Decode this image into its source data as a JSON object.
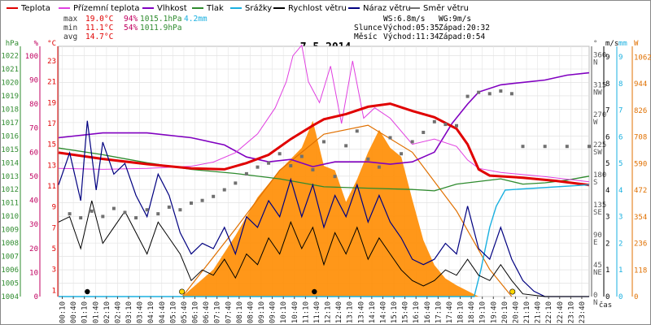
{
  "chart_data": {
    "type": "line",
    "title": "7.5.2014",
    "xlabel": "čas",
    "x_ticks": [
      "00:10",
      "00:40",
      "01:10",
      "01:40",
      "02:10",
      "02:40",
      "03:10",
      "03:40",
      "04:10",
      "04:40",
      "05:10",
      "05:40",
      "06:10",
      "06:40",
      "07:10",
      "07:40",
      "08:10",
      "08:40",
      "09:10",
      "09:40",
      "10:10",
      "10:40",
      "11:10",
      "11:40",
      "12:10",
      "12:40",
      "13:10",
      "13:40",
      "14:10",
      "14:40",
      "15:10",
      "15:40",
      "16:10",
      "16:40",
      "17:10",
      "17:40",
      "18:10",
      "18:40",
      "19:10",
      "19:40",
      "20:10",
      "20:40",
      "21:10",
      "21:40",
      "22:10",
      "22:40",
      "23:10",
      "23:40"
    ],
    "legend": [
      {
        "name": "Teplota",
        "color": "#e00000"
      },
      {
        "name": "Přízemní teplota",
        "color": "#e040e0"
      },
      {
        "name": "Vlhkost",
        "color": "#8000c0"
      },
      {
        "name": "Tlak",
        "color": "#2e8b2e"
      },
      {
        "name": "Srážky",
        "color": "#1ab0e0"
      },
      {
        "name": "Rychlost větru",
        "color": "#000000"
      },
      {
        "name": "Náraz větru",
        "color": "#000080"
      },
      {
        "name": "Směr větru",
        "color": "#707070"
      }
    ],
    "axes": {
      "hpa": {
        "label": "hPa",
        "color": "#2e8b2e",
        "ticks": [
          "1022",
          "1021",
          "1020",
          "1019",
          "1018",
          "1017",
          "1016",
          "1015",
          "1014",
          "1013",
          "1012",
          "1011",
          "1010",
          "1009",
          "1008",
          "1007",
          "1006",
          "1005",
          "1004"
        ]
      },
      "pct": {
        "label": "%",
        "color": "#c00060",
        "ticks": [
          "100",
          "90",
          "80",
          "70",
          "60",
          "50",
          "40",
          "30",
          "20",
          "10",
          "0"
        ]
      },
      "degc": {
        "label": "°C",
        "color": "#e00000",
        "ticks": [
          "23",
          "21",
          "19",
          "17",
          "15",
          "13",
          "11",
          "9",
          "7",
          "5",
          "3",
          "1"
        ]
      },
      "deg": {
        "label": "°",
        "color": "#555555",
        "ticks": [
          "360",
          "315",
          "270",
          "225",
          "180",
          "135",
          "90",
          "45",
          "0"
        ],
        "dirs": [
          "N",
          "NW",
          "W",
          "SW",
          "S",
          "SE",
          "E",
          "NE",
          "N"
        ]
      },
      "ms": {
        "label": "m/s",
        "color": "#000000",
        "ticks": [
          "9",
          "8",
          "7",
          "6",
          "5",
          "4",
          "3",
          "2",
          "1",
          "0"
        ]
      },
      "mm": {
        "label": "mm",
        "color": "#1ab0e0",
        "ticks": [
          "9",
          "8",
          "7",
          "6",
          "5",
          "4",
          "3",
          "2",
          "1",
          "0"
        ]
      },
      "wm2": {
        "label": "W",
        "color": "#e07000",
        "ticks": [
          "1062",
          "944",
          "826",
          "708",
          "590",
          "472",
          "354",
          "236",
          "118",
          "0"
        ]
      }
    },
    "stats": {
      "max": {
        "label": "max",
        "temp": "19.0°C",
        "hum": "94%",
        "press": "1015.1hPa",
        "rain": "4.2mm"
      },
      "min": {
        "label": "min",
        "temp": "11.1°C",
        "hum": "54%",
        "press": "1011.9hPa"
      },
      "avg": {
        "label": "avg",
        "temp": "14.7°C"
      }
    },
    "astro": {
      "ws": "WS:6.8m/s",
      "wg": "WG:9m/s",
      "sun_label": "Slunce",
      "sun_rise": "Východ:05:35",
      "sun_set": "Západ:20:32",
      "moon_label": "Měsíc",
      "moon_rise": "Východ:11:34",
      "moon_set": "Západ:0:54"
    },
    "series": {
      "temperature": [
        [
          0,
          14.2
        ],
        [
          2,
          13.6
        ],
        [
          4,
          13.1
        ],
        [
          6,
          12.7
        ],
        [
          7.5,
          12.6
        ],
        [
          8.5,
          13.2
        ],
        [
          9.5,
          14.0
        ],
        [
          10.5,
          15.5
        ],
        [
          11.5,
          16.8
        ],
        [
          12,
          17.4
        ],
        [
          13,
          17.9
        ],
        [
          14,
          18.6
        ],
        [
          15,
          18.9
        ],
        [
          16,
          18.2
        ],
        [
          17,
          17.6
        ],
        [
          18,
          16.5
        ],
        [
          18.5,
          15.0
        ],
        [
          19,
          12.6
        ],
        [
          19.5,
          12.0
        ],
        [
          21,
          11.8
        ],
        [
          22.5,
          11.5
        ],
        [
          24,
          11.1
        ]
      ],
      "ground_temp": [
        [
          0,
          12.7
        ],
        [
          2,
          12.6
        ],
        [
          4,
          12.7
        ],
        [
          5,
          12.8
        ],
        [
          6,
          12.9
        ],
        [
          7,
          13.3
        ],
        [
          8,
          14.2
        ],
        [
          9,
          16.0
        ],
        [
          9.8,
          18.5
        ],
        [
          10.3,
          21.0
        ],
        [
          10.6,
          23.5
        ],
        [
          11.0,
          24.5
        ],
        [
          11.3,
          21.0
        ],
        [
          11.8,
          19.0
        ],
        [
          12.3,
          22.5
        ],
        [
          12.8,
          17.0
        ],
        [
          13.3,
          23.0
        ],
        [
          13.8,
          17.5
        ],
        [
          14.3,
          18.5
        ],
        [
          15,
          17.5
        ],
        [
          16,
          15.0
        ],
        [
          17,
          15.5
        ],
        [
          18,
          14.8
        ],
        [
          18.5,
          13.5
        ],
        [
          19,
          12.7
        ],
        [
          20,
          12.3
        ],
        [
          22,
          11.9
        ],
        [
          24,
          11.4
        ]
      ],
      "humidity": [
        [
          0,
          66
        ],
        [
          2,
          68
        ],
        [
          4,
          68
        ],
        [
          6,
          66
        ],
        [
          7.5,
          63
        ],
        [
          8.5,
          58
        ],
        [
          9.5,
          56
        ],
        [
          10.5,
          57
        ],
        [
          11.5,
          54
        ],
        [
          12.5,
          56
        ],
        [
          14,
          56
        ],
        [
          15,
          55
        ],
        [
          16,
          56
        ],
        [
          17,
          60
        ],
        [
          17.8,
          72
        ],
        [
          18.5,
          80
        ],
        [
          19,
          85
        ],
        [
          20,
          88
        ],
        [
          21,
          89
        ],
        [
          22,
          90
        ],
        [
          23,
          92
        ],
        [
          24,
          93
        ]
      ],
      "pressure": [
        [
          0,
          1015.1
        ],
        [
          2,
          1014.6
        ],
        [
          4,
          1014.0
        ],
        [
          6,
          1013.5
        ],
        [
          8,
          1013.2
        ],
        [
          10,
          1012.8
        ],
        [
          12,
          1012.2
        ],
        [
          14,
          1012.1
        ],
        [
          16,
          1012.0
        ],
        [
          17,
          1011.9
        ],
        [
          18,
          1012.4
        ],
        [
          19,
          1012.6
        ],
        [
          20,
          1012.8
        ],
        [
          21,
          1012.4
        ],
        [
          22,
          1012.5
        ],
        [
          23,
          1012.7
        ],
        [
          24,
          1013.0
        ]
      ],
      "rain_total": [
        [
          0,
          0
        ],
        [
          18.8,
          0
        ],
        [
          19.1,
          1.0
        ],
        [
          19.5,
          2.6
        ],
        [
          19.8,
          3.4
        ],
        [
          20.2,
          4.0
        ],
        [
          24,
          4.2
        ]
      ],
      "wind_speed": [
        [
          0,
          2.8
        ],
        [
          0.5,
          3.0
        ],
        [
          1,
          1.8
        ],
        [
          1.5,
          3.6
        ],
        [
          2,
          2.0
        ],
        [
          2.5,
          2.6
        ],
        [
          3,
          3.2
        ],
        [
          3.5,
          2.4
        ],
        [
          4,
          1.6
        ],
        [
          4.5,
          2.8
        ],
        [
          5,
          2.2
        ],
        [
          5.5,
          1.6
        ],
        [
          6,
          0.6
        ],
        [
          6.5,
          1.0
        ],
        [
          7,
          0.8
        ],
        [
          7.5,
          1.4
        ],
        [
          8,
          0.7
        ],
        [
          8.5,
          1.6
        ],
        [
          9,
          1.2
        ],
        [
          9.5,
          2.2
        ],
        [
          10,
          1.6
        ],
        [
          10.5,
          2.8
        ],
        [
          11,
          1.8
        ],
        [
          11.5,
          2.6
        ],
        [
          12,
          1.2
        ],
        [
          12.5,
          2.4
        ],
        [
          13,
          1.6
        ],
        [
          13.5,
          2.6
        ],
        [
          14,
          1.4
        ],
        [
          14.5,
          2.2
        ],
        [
          15,
          1.6
        ],
        [
          15.5,
          1.0
        ],
        [
          16,
          0.6
        ],
        [
          16.5,
          0.4
        ],
        [
          17,
          0.6
        ],
        [
          17.5,
          1.0
        ],
        [
          18,
          0.8
        ],
        [
          18.5,
          1.4
        ],
        [
          19,
          0.8
        ],
        [
          19.5,
          0.6
        ],
        [
          20,
          1.2
        ],
        [
          20.5,
          0.6
        ],
        [
          21,
          0.1
        ],
        [
          22,
          0
        ],
        [
          24,
          0
        ]
      ],
      "wind_gust": [
        [
          0,
          4.2
        ],
        [
          0.5,
          5.4
        ],
        [
          1,
          3.6
        ],
        [
          1.3,
          6.6
        ],
        [
          1.7,
          4.0
        ],
        [
          2,
          5.8
        ],
        [
          2.5,
          4.6
        ],
        [
          3,
          5.0
        ],
        [
          3.5,
          3.8
        ],
        [
          4,
          3.0
        ],
        [
          4.5,
          4.6
        ],
        [
          5,
          3.8
        ],
        [
          5.5,
          2.4
        ],
        [
          6,
          1.6
        ],
        [
          6.5,
          2.0
        ],
        [
          7,
          1.8
        ],
        [
          7.5,
          2.6
        ],
        [
          8,
          1.6
        ],
        [
          8.5,
          3.0
        ],
        [
          9,
          2.6
        ],
        [
          9.5,
          3.6
        ],
        [
          10,
          3.0
        ],
        [
          10.5,
          4.4
        ],
        [
          11,
          3.0
        ],
        [
          11.5,
          4.2
        ],
        [
          12,
          2.6
        ],
        [
          12.5,
          3.8
        ],
        [
          13,
          3.0
        ],
        [
          13.5,
          4.2
        ],
        [
          14,
          2.8
        ],
        [
          14.5,
          3.8
        ],
        [
          15,
          2.8
        ],
        [
          15.5,
          2.2
        ],
        [
          16,
          1.4
        ],
        [
          16.5,
          1.2
        ],
        [
          17,
          1.4
        ],
        [
          17.5,
          2.0
        ],
        [
          18,
          1.6
        ],
        [
          18.5,
          3.4
        ],
        [
          19,
          1.8
        ],
        [
          19.5,
          1.4
        ],
        [
          20,
          2.6
        ],
        [
          20.5,
          1.4
        ],
        [
          21,
          0.6
        ],
        [
          21.5,
          0.2
        ],
        [
          22,
          0
        ],
        [
          24,
          0
        ]
      ],
      "wind_dir": [
        [
          0.5,
          124
        ],
        [
          1,
          118
        ],
        [
          1.5,
          128
        ],
        [
          2,
          120
        ],
        [
          2.5,
          132
        ],
        [
          3,
          126
        ],
        [
          3.5,
          118
        ],
        [
          4,
          130
        ],
        [
          4.5,
          124
        ],
        [
          5,
          134
        ],
        [
          5.5,
          130
        ],
        [
          6,
          140
        ],
        [
          6.5,
          144
        ],
        [
          7,
          150
        ],
        [
          7.5,
          160
        ],
        [
          8,
          170
        ],
        [
          8.5,
          184
        ],
        [
          9,
          194
        ],
        [
          9.5,
          200
        ],
        [
          10,
          214
        ],
        [
          10.5,
          196
        ],
        [
          11,
          210
        ],
        [
          11.5,
          190
        ],
        [
          12,
          232
        ],
        [
          12.5,
          180
        ],
        [
          13,
          226
        ],
        [
          13.5,
          248
        ],
        [
          14,
          206
        ],
        [
          14.5,
          194
        ],
        [
          15,
          238
        ],
        [
          15.5,
          214
        ],
        [
          16,
          232
        ],
        [
          16.5,
          246
        ],
        [
          17,
          262
        ],
        [
          17.5,
          258
        ],
        [
          18,
          256
        ],
        [
          18.5,
          300
        ],
        [
          19,
          306
        ],
        [
          19.5,
          304
        ],
        [
          20,
          308
        ],
        [
          20.5,
          304
        ],
        [
          21,
          225
        ],
        [
          22,
          225
        ],
        [
          23,
          225
        ],
        [
          24,
          225
        ]
      ],
      "solar": [
        [
          5.6,
          0
        ],
        [
          7,
          120
        ],
        [
          8,
          270
        ],
        [
          9,
          440
        ],
        [
          10,
          560
        ],
        [
          11,
          660
        ],
        [
          11.5,
          780
        ],
        [
          12,
          580
        ],
        [
          12.5,
          560
        ],
        [
          13,
          420
        ],
        [
          13.5,
          520
        ],
        [
          14,
          640
        ],
        [
          14.5,
          740
        ],
        [
          15,
          660
        ],
        [
          15.5,
          620
        ],
        [
          16,
          430
        ],
        [
          16.5,
          250
        ],
        [
          17,
          140
        ],
        [
          17.5,
          80
        ],
        [
          18,
          50
        ],
        [
          19,
          0
        ]
      ],
      "solar_theory": [
        [
          5.6,
          0
        ],
        [
          8,
          300
        ],
        [
          10,
          560
        ],
        [
          12,
          720
        ],
        [
          14,
          760
        ],
        [
          16,
          640
        ],
        [
          18,
          380
        ],
        [
          19.5,
          120
        ],
        [
          20.5,
          0
        ]
      ]
    }
  }
}
